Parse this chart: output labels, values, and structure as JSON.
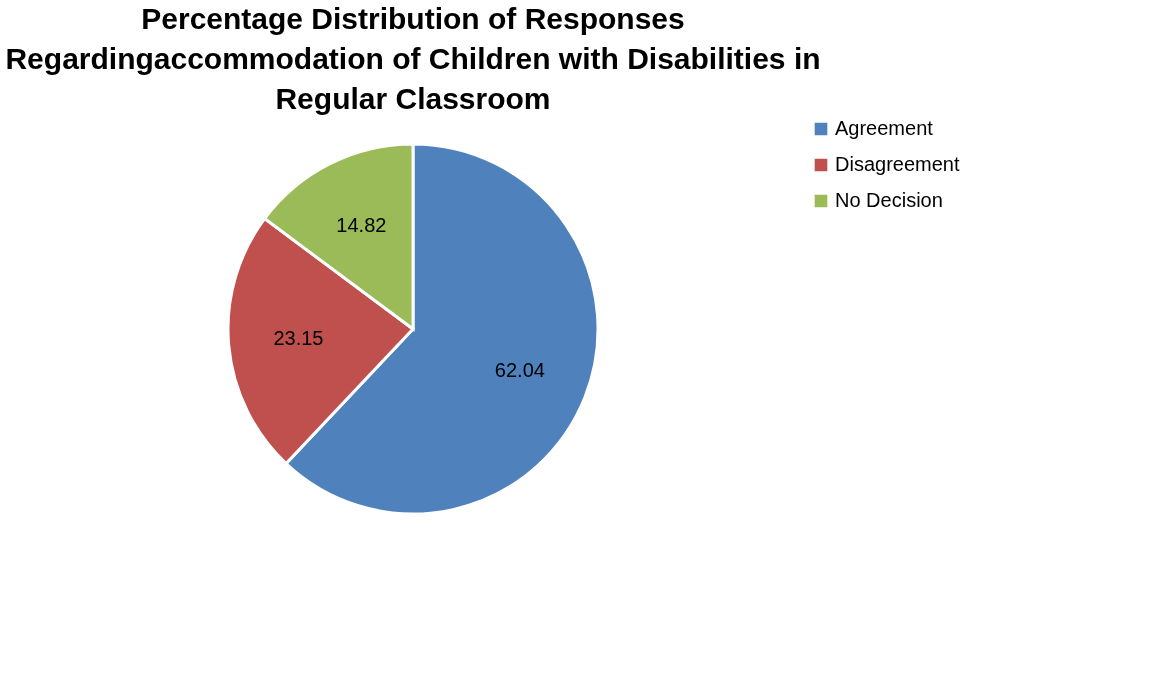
{
  "chart_data": {
    "type": "pie",
    "title": "Percentage Distribution of Responses\nRegardingaccommodation of Children with Disabilities in\nRegular Classroom",
    "categories": [
      "Agreement",
      "Disagreement",
      "No Decision"
    ],
    "values": [
      62.04,
      23.15,
      14.82
    ],
    "colors": [
      "#4f81bd",
      "#c0504d",
      "#9bbb59"
    ],
    "data_labels": true,
    "legend": "right"
  }
}
